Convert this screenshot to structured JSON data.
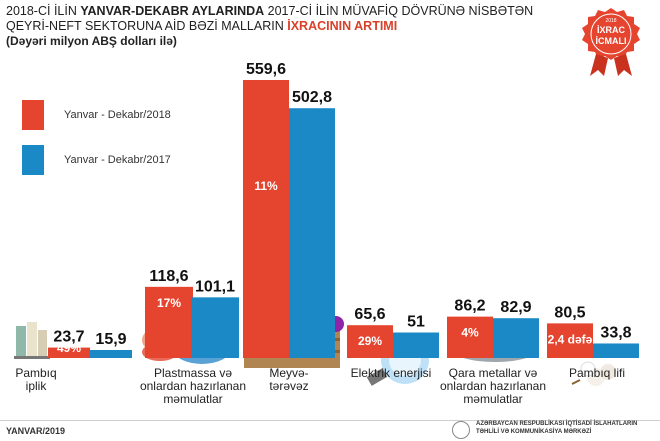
{
  "header": {
    "line1_a": "2018-Cİ İLİN ",
    "line1_b": "YANVAR-DEKABR AYLARINDA",
    "line1_c": " 2017-Cİ İLİN MÜVAFİQ DÖVRÜNƏ NİSBƏTƏN",
    "line2_a": "QEYRİ-NEFT SEKTORUNA AİD BƏZİ MALLARIN ",
    "line2_b": "İXRACININ ARTIMI",
    "line3": "(Dəyəri milyon ABŞ dolları ilə)"
  },
  "badge": {
    "year": "2018",
    "line1": "İXRAC",
    "line2": "İCMALI"
  },
  "footer": {
    "left": "YANVAR/2019",
    "right_line1": "AZƏRBAYCAN RESPUBLİKASI İQTİSADİ İSLAHATLARIN",
    "right_line2": "TƏHLİLİ VƏ KOMMUNİKASİYA MƏRKƏZİ"
  },
  "colors": {
    "red": "#e5452f",
    "blue": "#1b89c5"
  },
  "chart_data": {
    "type": "bar",
    "categories": [
      "Pambıq iplik",
      "Plastmassa və onlardan hazırlanan məmulatlar",
      "Meyvə-tərəvəz",
      "Elektrik enerjisi",
      "Qara metallar və onlardan hazırlanan məmulatlar",
      "Pambıq lifi"
    ],
    "category_labels": [
      [
        "Pambıq",
        "iplik"
      ],
      [
        "Plastmassa və",
        "onlardan hazırlanan",
        "məmulatlar"
      ],
      [
        "Meyvə-",
        "tərəvəz"
      ],
      [
        "Elektrik enerjisi"
      ],
      [
        "Qara metallar və",
        "onlardan hazırlanan",
        "məmulatlar"
      ],
      [
        "Pambıq lifi"
      ]
    ],
    "series": [
      {
        "name": "Yanvar - Dekabr/2018",
        "values": [
          23.7,
          118.6,
          559.6,
          65.6,
          86.2,
          80.5
        ],
        "labels": [
          "23,7",
          "118,6",
          "559,6",
          "65,6",
          "86,2",
          "80,5"
        ]
      },
      {
        "name": "Yanvar - Dekabr/2017",
        "values": [
          15.9,
          101.1,
          502.8,
          51,
          82.9,
          33.8
        ],
        "labels": [
          "15,9",
          "101,1",
          "502,8",
          "51",
          "82,9",
          "33,8"
        ]
      }
    ],
    "growth_labels": [
      "49%",
      "17%",
      "11%",
      "29%",
      "4%",
      "2,4 dəfə"
    ]
  }
}
